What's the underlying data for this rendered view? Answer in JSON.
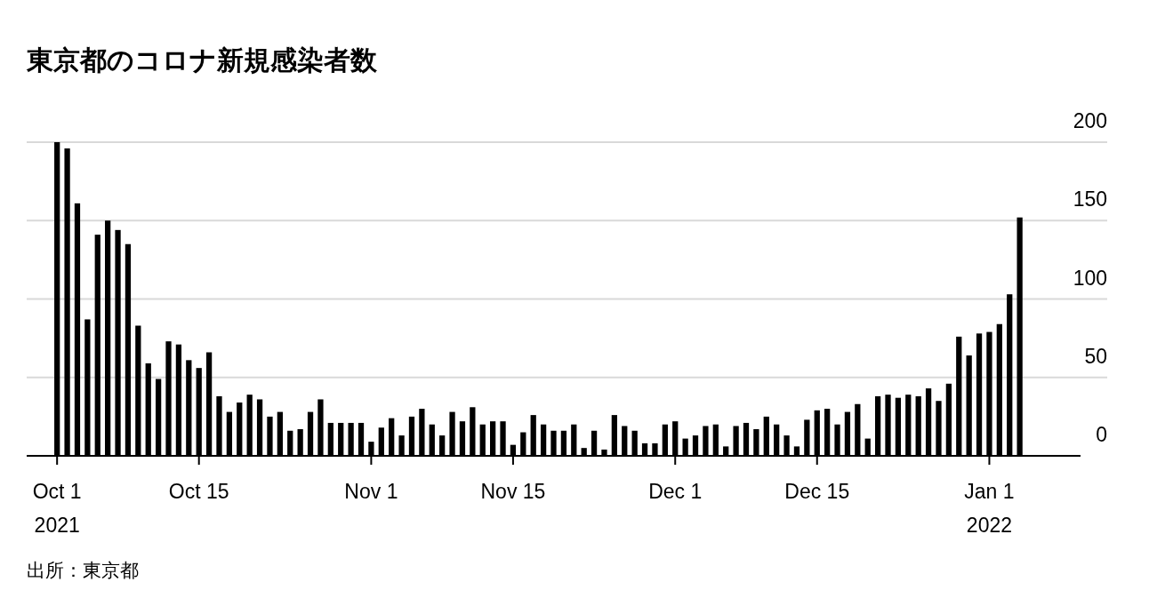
{
  "chart_data": {
    "type": "bar",
    "title": "東京都のコロナ新規感染者数",
    "x": [
      "2021-10-01",
      "2021-10-02",
      "2021-10-03",
      "2021-10-04",
      "2021-10-05",
      "2021-10-06",
      "2021-10-07",
      "2021-10-08",
      "2021-10-09",
      "2021-10-10",
      "2021-10-11",
      "2021-10-12",
      "2021-10-13",
      "2021-10-14",
      "2021-10-15",
      "2021-10-16",
      "2021-10-17",
      "2021-10-18",
      "2021-10-19",
      "2021-10-20",
      "2021-10-21",
      "2021-10-22",
      "2021-10-23",
      "2021-10-24",
      "2021-10-25",
      "2021-10-26",
      "2021-10-27",
      "2021-10-28",
      "2021-10-29",
      "2021-10-30",
      "2021-10-31",
      "2021-11-01",
      "2021-11-02",
      "2021-11-03",
      "2021-11-04",
      "2021-11-05",
      "2021-11-06",
      "2021-11-07",
      "2021-11-08",
      "2021-11-09",
      "2021-11-10",
      "2021-11-11",
      "2021-11-12",
      "2021-11-13",
      "2021-11-14",
      "2021-11-15",
      "2021-11-16",
      "2021-11-17",
      "2021-11-18",
      "2021-11-19",
      "2021-11-20",
      "2021-11-21",
      "2021-11-22",
      "2021-11-23",
      "2021-11-24",
      "2021-11-25",
      "2021-11-26",
      "2021-11-27",
      "2021-11-28",
      "2021-11-29",
      "2021-11-30",
      "2021-12-01",
      "2021-12-02",
      "2021-12-03",
      "2021-12-04",
      "2021-12-05",
      "2021-12-06",
      "2021-12-07",
      "2021-12-08",
      "2021-12-09",
      "2021-12-10",
      "2021-12-11",
      "2021-12-12",
      "2021-12-13",
      "2021-12-14",
      "2021-12-15",
      "2021-12-16",
      "2021-12-17",
      "2021-12-18",
      "2021-12-19",
      "2021-12-20",
      "2021-12-21",
      "2021-12-22",
      "2021-12-23",
      "2021-12-24",
      "2021-12-25",
      "2021-12-26",
      "2021-12-27",
      "2021-12-28",
      "2021-12-29",
      "2021-12-30",
      "2021-12-31",
      "2022-01-01",
      "2022-01-02",
      "2022-01-03",
      "2022-01-04"
    ],
    "values": [
      200,
      196,
      161,
      87,
      141,
      150,
      144,
      135,
      83,
      59,
      49,
      73,
      71,
      61,
      56,
      66,
      38,
      28,
      34,
      39,
      36,
      25,
      28,
      16,
      17,
      28,
      36,
      21,
      21,
      21,
      21,
      9,
      18,
      24,
      13,
      25,
      30,
      20,
      13,
      28,
      22,
      31,
      20,
      22,
      22,
      7,
      15,
      26,
      20,
      16,
      16,
      20,
      5,
      16,
      4,
      26,
      19,
      16,
      8,
      8,
      20,
      22,
      11,
      13,
      19,
      20,
      6,
      19,
      21,
      17,
      25,
      20,
      13,
      6,
      23,
      29,
      30,
      20,
      28,
      33,
      11,
      38,
      39,
      37,
      39,
      38,
      43,
      35,
      46,
      76,
      64,
      78,
      79,
      84,
      103,
      152
    ],
    "color": "#000000",
    "xlim": [
      "2021-09-28",
      "2022-01-10"
    ],
    "xticks": [
      {
        "value": "2021-10-01",
        "label": "Oct 1\n2021"
      },
      {
        "value": "2021-10-15",
        "label": "Oct 15"
      },
      {
        "value": "2021-11-01",
        "label": "Nov 1"
      },
      {
        "value": "2021-11-15",
        "label": "Nov 15"
      },
      {
        "value": "2021-12-01",
        "label": "Dec 1"
      },
      {
        "value": "2021-12-15",
        "label": "Dec 15"
      },
      {
        "value": "2022-01-01",
        "label": "Jan 1\n2022"
      }
    ],
    "ylim": [
      0,
      200
    ],
    "yticks": [
      0,
      50,
      100,
      150,
      200
    ],
    "grid": "y",
    "annotations": [
      "出所：東京都"
    ]
  }
}
